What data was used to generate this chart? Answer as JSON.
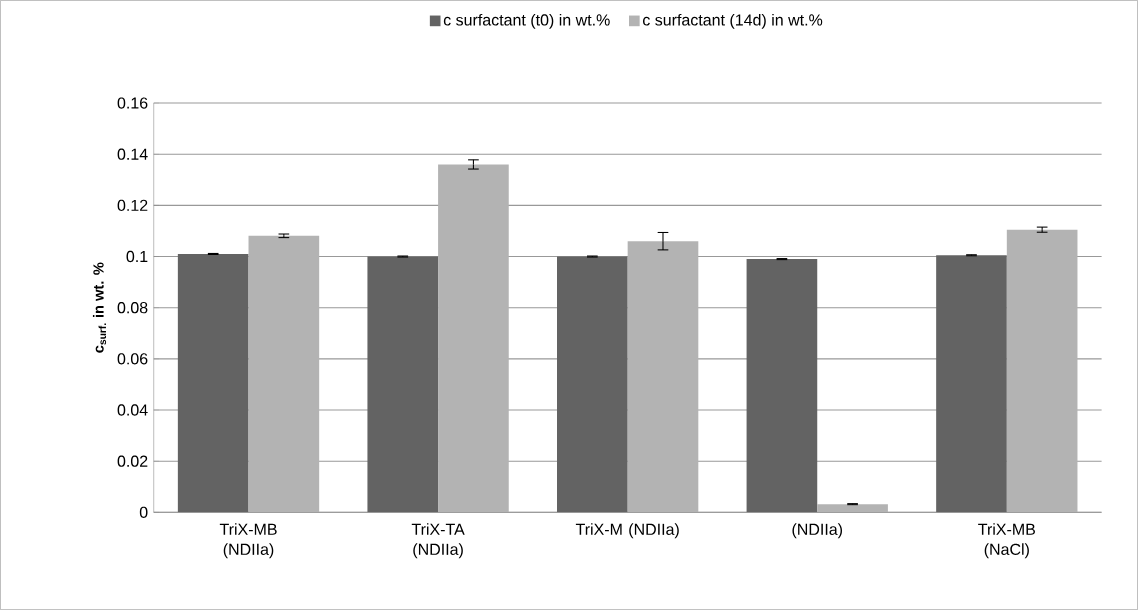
{
  "chart_data": {
    "type": "bar",
    "ylabel": "c$_{surf.}$ in wt. %",
    "categories": [
      "TriX-MB (NDIIa)",
      "TriX-TA (NDIIa)",
      "TriX-M (NDIIa)",
      "(NDIIa)",
      "TriX-MB (NaCl)"
    ],
    "series": [
      {
        "name": "c surfactant (t0) in wt.%",
        "color": "#636363",
        "values": [
          0.101,
          0.1,
          0.1,
          0.099,
          0.1005
        ],
        "errors": [
          0.0002,
          0.0002,
          0.0002,
          0.0002,
          0.0002
        ]
      },
      {
        "name": "c surfactant (14d) in wt.%",
        "color": "#b3b3b3",
        "values": [
          0.1081,
          0.136,
          0.106,
          0.0032,
          0.1105
        ],
        "errors": [
          0.0007,
          0.0018,
          0.0034,
          0.0002,
          0.001
        ]
      }
    ],
    "ylim": [
      0,
      0.16
    ],
    "yticks": [
      0,
      0.02,
      0.04,
      0.06,
      0.08,
      0.1,
      0.12,
      0.14,
      0.16
    ],
    "grid": "y",
    "legend": "top"
  }
}
